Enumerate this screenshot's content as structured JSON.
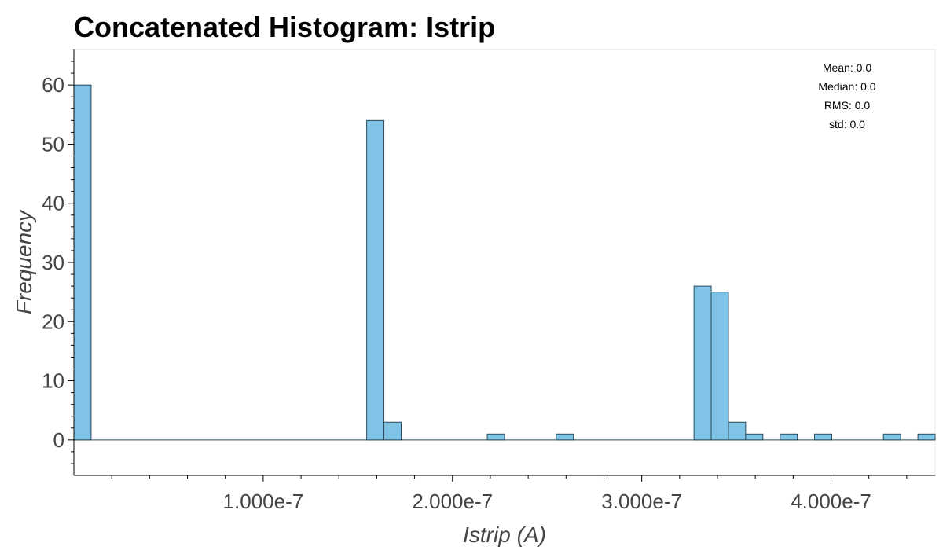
{
  "chart_data": {
    "type": "bar",
    "title": "Concatenated Histogram: Istrip",
    "xlabel": "Istrip (A)",
    "ylabel": "Frequency",
    "bin_width": 9.1e-09,
    "bins": [
      {
        "x0": 0,
        "x1": 9.1e-09,
        "count": 60
      },
      {
        "x0": 1.547e-07,
        "x1": 1.638e-07,
        "count": 54
      },
      {
        "x0": 1.638e-07,
        "x1": 1.729e-07,
        "count": 3
      },
      {
        "x0": 2.184e-07,
        "x1": 2.275e-07,
        "count": 1
      },
      {
        "x0": 2.548e-07,
        "x1": 2.639e-07,
        "count": 1
      },
      {
        "x0": 3.276e-07,
        "x1": 3.367e-07,
        "count": 26
      },
      {
        "x0": 3.367e-07,
        "x1": 3.458e-07,
        "count": 25
      },
      {
        "x0": 3.458e-07,
        "x1": 3.549e-07,
        "count": 3
      },
      {
        "x0": 3.549e-07,
        "x1": 3.64e-07,
        "count": 1
      },
      {
        "x0": 3.731e-07,
        "x1": 3.822e-07,
        "count": 1
      },
      {
        "x0": 3.913e-07,
        "x1": 4.004e-07,
        "count": 1
      },
      {
        "x0": 4.277e-07,
        "x1": 4.368e-07,
        "count": 1
      },
      {
        "x0": 4.459e-07,
        "x1": 4.55e-07,
        "count": 1
      }
    ],
    "xlim": [
      0,
      4.55e-07
    ],
    "ylim": [
      -6,
      66
    ],
    "x_ticks": [
      {
        "value": 1e-07,
        "label": "1.000e-7"
      },
      {
        "value": 2e-07,
        "label": "2.000e-7"
      },
      {
        "value": 3e-07,
        "label": "3.000e-7"
      },
      {
        "value": 4e-07,
        "label": "4.000e-7"
      }
    ],
    "y_ticks": [
      0,
      10,
      20,
      30,
      40,
      50,
      60
    ],
    "grid": false,
    "legend_placement": "top-right",
    "stats": [
      "Mean: 0.0",
      "Median: 0.0",
      "RMS: 0.0",
      "std: 0.0"
    ],
    "colors": {
      "bar_fill": "#7fc4e6",
      "bar_edge": "#2b4a5c",
      "axis": "#000000"
    }
  }
}
